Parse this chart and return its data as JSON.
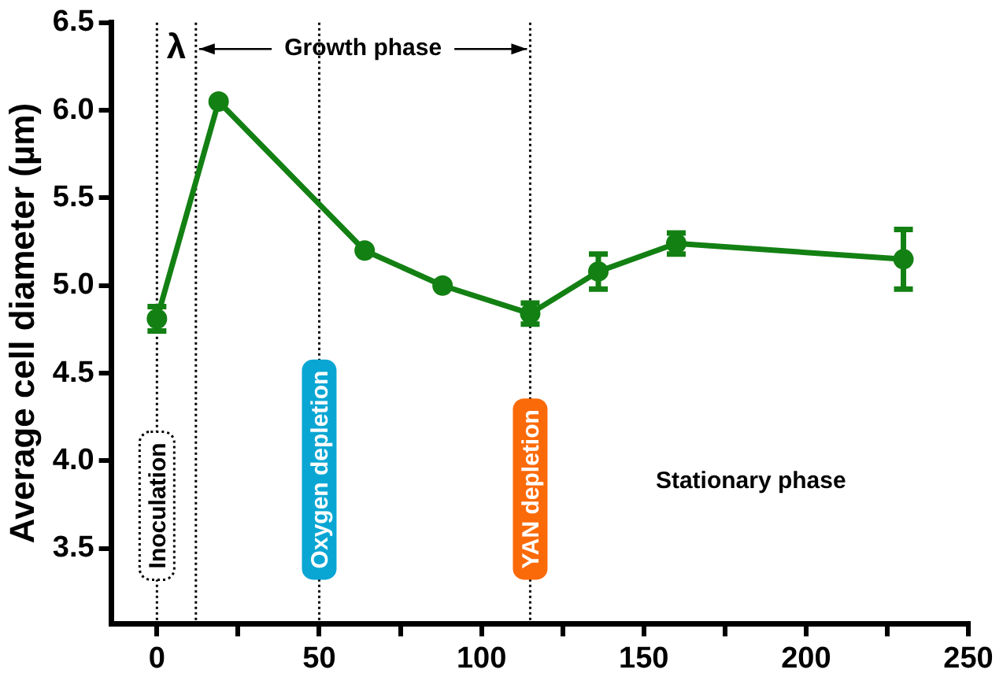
{
  "chart_data": {
    "type": "line",
    "ylabel": "Average cell diameter (µm)",
    "x": [
      0,
      19,
      64,
      88,
      115,
      136,
      160,
      230
    ],
    "series": [
      {
        "color": "#138013",
        "values": [
          4.81,
          6.05,
          5.2,
          5.0,
          4.84,
          5.08,
          5.24,
          5.15
        ],
        "errors": [
          0.07,
          null,
          null,
          null,
          0.06,
          0.1,
          0.06,
          0.17
        ]
      }
    ],
    "xlim": [
      -14,
      250
    ],
    "xticks": [
      0,
      {
        "value": 25,
        "label": null
      },
      50,
      {
        "value": 75,
        "label": null
      },
      100,
      {
        "value": 125,
        "label": null
      },
      150,
      {
        "value": 175,
        "label": null
      },
      200,
      {
        "value": 225,
        "label": null
      },
      250
    ],
    "ylim": [
      3.07,
      6.5
    ],
    "yticks": [
      {
        "value": 3.5,
        "label": "3.5"
      },
      {
        "value": 4,
        "label": "4.0"
      },
      {
        "value": 4.5,
        "label": "4.5"
      },
      {
        "value": 5,
        "label": "5.0"
      },
      {
        "value": 5.5,
        "label": "5.5"
      },
      {
        "value": 6,
        "label": "6.0"
      },
      6.5
    ],
    "ref_lines": [
      {
        "axis": "x",
        "value": 0,
        "label": "Inoculation",
        "color": "#000000",
        "line_style": "dotted"
      },
      {
        "axis": "x",
        "value": 12,
        "label": null,
        "color": "#000000",
        "line_style": "dotted"
      },
      {
        "axis": "x",
        "value": 50,
        "label": "Oxygen depletion",
        "color": "#000000",
        "line_style": "dotted"
      },
      {
        "axis": "x",
        "value": 115,
        "label": "YAN depletion",
        "color": "#000000",
        "line_style": "dotted"
      }
    ],
    "annotations": [
      "λ",
      {
        "text": "Growth phase",
        "x": 115,
        "y": 6.35
      },
      "Stationary phase"
    ],
    "grid": false,
    "legend": false,
    "marker": "circle",
    "line_style": "solid"
  }
}
